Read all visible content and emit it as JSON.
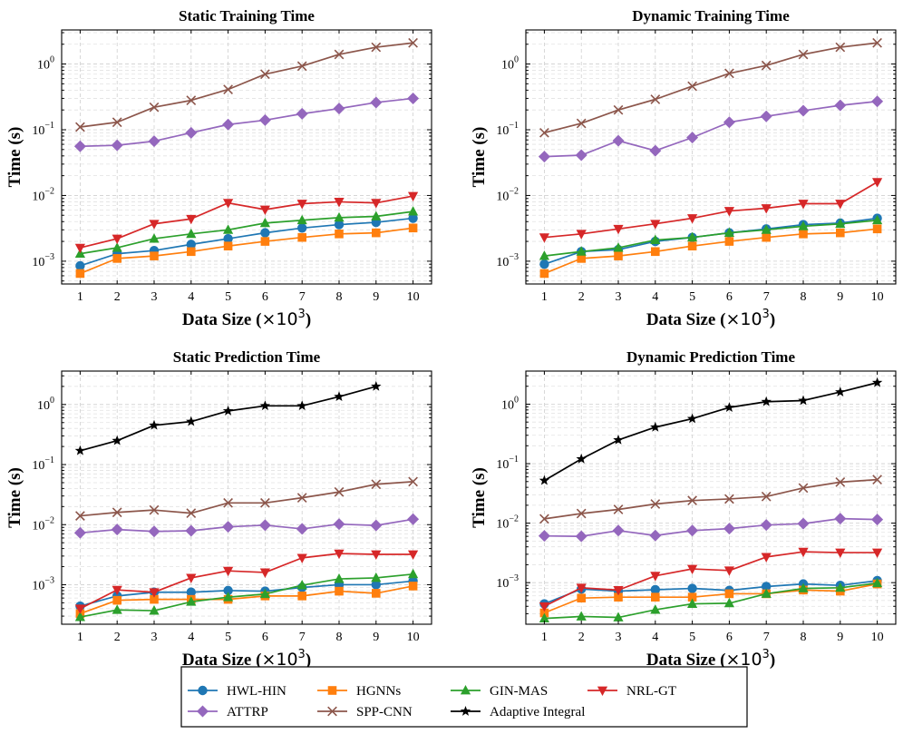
{
  "colors": {
    "HWL-HIN": "#1f77b4",
    "HGNNs": "#ff7f0e",
    "GIN-MAS": "#2ca02c",
    "NRL-GT": "#d62728",
    "ATTRP": "#9467bd",
    "SPP-CNN": "#8c564b",
    "Adaptive Integral": "#000000"
  },
  "markers": {
    "HWL-HIN": "circle",
    "HGNNs": "square",
    "GIN-MAS": "triangle-up",
    "NRL-GT": "triangle-down",
    "ATTRP": "diamond",
    "SPP-CNN": "x",
    "Adaptive Integral": "star"
  },
  "legend": {
    "entries": [
      "HWL-HIN",
      "HGNNs",
      "GIN-MAS",
      "NRL-GT",
      "ATTRP",
      "SPP-CNN",
      "Adaptive Integral"
    ],
    "placement": "bottom-center"
  },
  "chart_data": [
    {
      "type": "line",
      "title": "Static Training Time",
      "xlabel": "Data Size (×10³)",
      "ylabel": "Time (s)",
      "yscale": "log",
      "ylim": [
        0.00045,
        3.3
      ],
      "xlim": [
        0.5,
        10.5
      ],
      "x": [
        1,
        2,
        3,
        4,
        5,
        6,
        7,
        8,
        9,
        10
      ],
      "yticks": [
        {
          "value": 0.001,
          "base": "10",
          "exp": "−3"
        },
        {
          "value": 0.01,
          "base": "10",
          "exp": "−2"
        },
        {
          "value": 0.1,
          "base": "10",
          "exp": "−1"
        },
        {
          "value": 1,
          "base": "10",
          "exp": "0"
        }
      ],
      "grid": true,
      "series": [
        {
          "name": "HWL-HIN",
          "values": [
            0.00085,
            0.0013,
            0.00145,
            0.0018,
            0.0022,
            0.0027,
            0.0032,
            0.0036,
            0.0039,
            0.0045
          ]
        },
        {
          "name": "HGNNs",
          "values": [
            0.00065,
            0.0011,
            0.0012,
            0.0014,
            0.0017,
            0.002,
            0.0023,
            0.0026,
            0.0027,
            0.0032
          ]
        },
        {
          "name": "GIN-MAS",
          "values": [
            0.0013,
            0.0016,
            0.0022,
            0.0026,
            0.003,
            0.0038,
            0.0042,
            0.0046,
            0.0048,
            0.0057
          ]
        },
        {
          "name": "NRL-GT",
          "values": [
            0.0016,
            0.0022,
            0.0037,
            0.0044,
            0.0077,
            0.0061,
            0.0075,
            0.008,
            0.0077,
            0.0098
          ]
        },
        {
          "name": "ATTRP",
          "values": [
            0.056,
            0.058,
            0.067,
            0.09,
            0.12,
            0.14,
            0.175,
            0.21,
            0.26,
            0.3
          ]
        },
        {
          "name": "SPP-CNN",
          "values": [
            0.11,
            0.13,
            0.22,
            0.28,
            0.41,
            0.7,
            0.93,
            1.4,
            1.8,
            2.1
          ]
        }
      ]
    },
    {
      "type": "line",
      "title": "Dynamic Training Time",
      "xlabel": "Data Size (×10³)",
      "ylabel": "Time (s)",
      "yscale": "log",
      "ylim": [
        0.00045,
        3.3
      ],
      "xlim": [
        0.5,
        10.5
      ],
      "x": [
        1,
        2,
        3,
        4,
        5,
        6,
        7,
        8,
        9,
        10
      ],
      "yticks": [
        {
          "value": 0.001,
          "base": "10",
          "exp": "−3"
        },
        {
          "value": 0.01,
          "base": "10",
          "exp": "−2"
        },
        {
          "value": 0.1,
          "base": "10",
          "exp": "−1"
        },
        {
          "value": 1,
          "base": "10",
          "exp": "0"
        }
      ],
      "grid": true,
      "series": [
        {
          "name": "HWL-HIN",
          "values": [
            0.0009,
            0.0014,
            0.0015,
            0.002,
            0.0023,
            0.0027,
            0.0031,
            0.0036,
            0.0038,
            0.0045
          ]
        },
        {
          "name": "HGNNs",
          "values": [
            0.00065,
            0.0011,
            0.0012,
            0.0014,
            0.0017,
            0.002,
            0.0023,
            0.0026,
            0.0027,
            0.0031
          ]
        },
        {
          "name": "GIN-MAS",
          "values": [
            0.0012,
            0.0014,
            0.0016,
            0.0021,
            0.0023,
            0.0027,
            0.003,
            0.0034,
            0.0037,
            0.0042
          ]
        },
        {
          "name": "NRL-GT",
          "values": [
            0.0023,
            0.0026,
            0.0031,
            0.0037,
            0.0045,
            0.0058,
            0.0064,
            0.0075,
            0.0075,
            0.016
          ]
        },
        {
          "name": "ATTRP",
          "values": [
            0.039,
            0.041,
            0.068,
            0.048,
            0.076,
            0.13,
            0.16,
            0.195,
            0.235,
            0.27
          ]
        },
        {
          "name": "SPP-CNN",
          "values": [
            0.09,
            0.125,
            0.2,
            0.29,
            0.46,
            0.72,
            0.95,
            1.4,
            1.8,
            2.1
          ]
        }
      ]
    },
    {
      "type": "line",
      "title": "Static Prediction Time",
      "xlabel": "Data Size (×10³)",
      "ylabel": "Time (s)",
      "yscale": "log",
      "ylim": [
        0.00022,
        3.6
      ],
      "xlim": [
        0.5,
        10.5
      ],
      "x": [
        1,
        2,
        3,
        4,
        5,
        6,
        7,
        8,
        9,
        10
      ],
      "yticks": [
        {
          "value": 0.001,
          "base": "10",
          "exp": "−3"
        },
        {
          "value": 0.01,
          "base": "10",
          "exp": "−2"
        },
        {
          "value": 0.1,
          "base": "10",
          "exp": "−1"
        },
        {
          "value": 1,
          "base": "10",
          "exp": "0"
        }
      ],
      "grid": true,
      "series": [
        {
          "name": "HWL-HIN",
          "values": [
            0.00044,
            0.00065,
            0.00075,
            0.00075,
            0.0008,
            0.00078,
            0.0009,
            0.001,
            0.001,
            0.00115
          ]
        },
        {
          "name": "HGNNs",
          "values": [
            0.00033,
            0.00055,
            0.00057,
            0.00057,
            0.00057,
            0.00065,
            0.00065,
            0.00078,
            0.00072,
            0.00095
          ]
        },
        {
          "name": "GIN-MAS",
          "values": [
            0.00029,
            0.00038,
            0.00037,
            0.00052,
            0.00062,
            0.0007,
            0.00098,
            0.00125,
            0.0013,
            0.0015
          ]
        },
        {
          "name": "NRL-GT",
          "values": [
            0.0004,
            0.00082,
            0.00075,
            0.0013,
            0.0017,
            0.0016,
            0.0028,
            0.0033,
            0.0032,
            0.0032
          ]
        },
        {
          "name": "ATTRP",
          "values": [
            0.0073,
            0.0083,
            0.0077,
            0.0079,
            0.0092,
            0.0098,
            0.0085,
            0.0102,
            0.0097,
            0.0123
          ]
        },
        {
          "name": "SPP-CNN",
          "values": [
            0.014,
            0.016,
            0.0175,
            0.0155,
            0.023,
            0.023,
            0.028,
            0.035,
            0.047,
            0.052
          ]
        },
        {
          "name": "Adaptive Integral",
          "x": [
            1,
            2,
            3,
            4,
            5,
            6,
            7,
            8,
            9
          ],
          "values": [
            0.17,
            0.25,
            0.45,
            0.52,
            0.78,
            0.95,
            0.95,
            1.35,
            2.0
          ]
        }
      ]
    },
    {
      "type": "line",
      "title": "Dynamic Prediction Time",
      "xlabel": "Data Size (×10³)",
      "ylabel": "Time (s)",
      "yscale": "log",
      "ylim": [
        0.0002,
        3.6
      ],
      "xlim": [
        0.5,
        10.5
      ],
      "x": [
        1,
        2,
        3,
        4,
        5,
        6,
        7,
        8,
        9,
        10
      ],
      "yticks": [
        {
          "value": 0.001,
          "base": "10",
          "exp": "−3"
        },
        {
          "value": 0.01,
          "base": "10",
          "exp": "−2"
        },
        {
          "value": 0.1,
          "base": "10",
          "exp": "−1"
        },
        {
          "value": 1,
          "base": "10",
          "exp": "0"
        }
      ],
      "grid": true,
      "series": [
        {
          "name": "HWL-HIN",
          "values": [
            0.00044,
            0.00078,
            0.00072,
            0.00076,
            0.0008,
            0.00074,
            0.00086,
            0.00095,
            0.0009,
            0.00108
          ]
        },
        {
          "name": "HGNNs",
          "values": [
            0.00031,
            0.00055,
            0.00057,
            0.00057,
            0.00057,
            0.00065,
            0.00065,
            0.00075,
            0.00072,
            0.00095
          ]
        },
        {
          "name": "GIN-MAS",
          "values": [
            0.00025,
            0.00027,
            0.00026,
            0.00035,
            0.00044,
            0.00045,
            0.00065,
            0.0008,
            0.00082,
            0.00098
          ]
        },
        {
          "name": "NRL-GT",
          "values": [
            0.0004,
            0.00082,
            0.00075,
            0.0013,
            0.0017,
            0.0016,
            0.0027,
            0.0033,
            0.0032,
            0.0032
          ]
        },
        {
          "name": "ATTRP",
          "values": [
            0.0061,
            0.006,
            0.0075,
            0.0062,
            0.0075,
            0.0081,
            0.0093,
            0.0098,
            0.0119,
            0.0115
          ]
        },
        {
          "name": "SPP-CNN",
          "values": [
            0.0118,
            0.0145,
            0.017,
            0.021,
            0.024,
            0.0255,
            0.028,
            0.039,
            0.049,
            0.054
          ]
        },
        {
          "name": "Adaptive Integral",
          "values": [
            0.052,
            0.12,
            0.25,
            0.41,
            0.57,
            0.88,
            1.1,
            1.15,
            1.6,
            2.3
          ]
        }
      ]
    }
  ]
}
